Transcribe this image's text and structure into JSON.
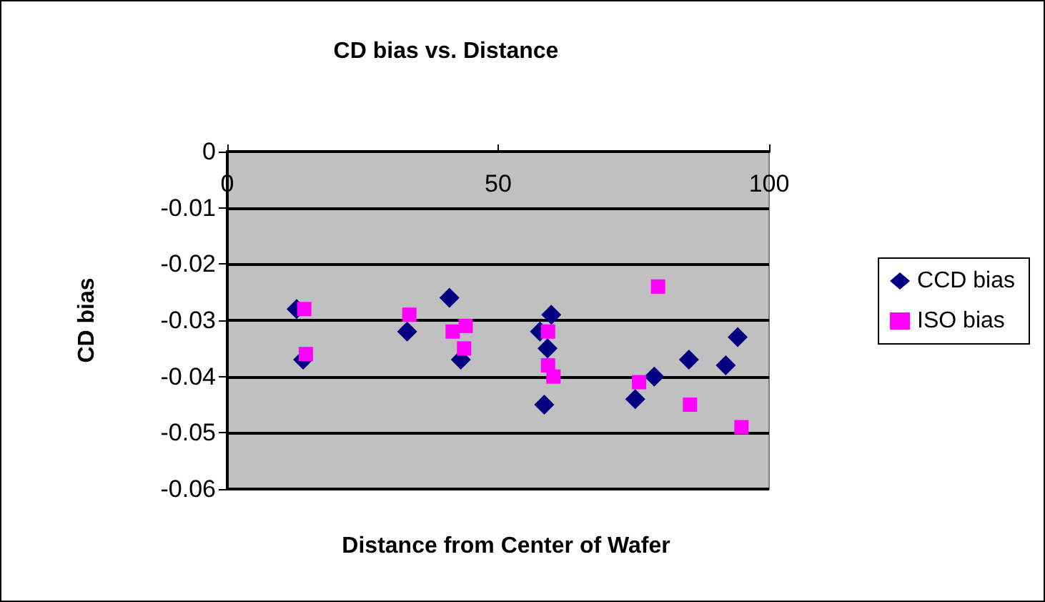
{
  "chart_data": {
    "type": "scatter",
    "title": "CD bias vs. Distance",
    "xlabel": "Distance from Center of Wafer",
    "ylabel": "CD bias",
    "xlim": [
      0,
      100
    ],
    "xticks": [
      0,
      50,
      100
    ],
    "ylim": [
      -0.06,
      0
    ],
    "yticks": [
      -0.06,
      -0.05,
      -0.04,
      -0.03,
      -0.02,
      -0.01,
      0
    ],
    "grid": "y",
    "legend": "right",
    "series": [
      {
        "name": "CCD bias",
        "color": "#000080",
        "marker": "diamond",
        "x": [
          12.8,
          14,
          33.2,
          41,
          43.1,
          57.7,
          59.8,
          59.1,
          58.5,
          75.3,
          78.8,
          85.2,
          92,
          94.2
        ],
        "values": [
          -0.028,
          -0.037,
          -0.032,
          -0.026,
          -0.037,
          -0.032,
          -0.029,
          -0.035,
          -0.045,
          -0.044,
          -0.04,
          -0.037,
          -0.038,
          -0.033
        ]
      },
      {
        "name": "ISO bias",
        "color": "#ff00ff",
        "marker": "square",
        "x": [
          14.2,
          14.5,
          33.6,
          41.6,
          44,
          43.7,
          59.2,
          59.2,
          60.2,
          76,
          79.5,
          85.4,
          94.9
        ],
        "values": [
          -0.028,
          -0.036,
          -0.029,
          -0.032,
          -0.031,
          -0.035,
          -0.032,
          -0.038,
          -0.04,
          -0.041,
          -0.024,
          -0.045,
          -0.049
        ]
      }
    ]
  }
}
